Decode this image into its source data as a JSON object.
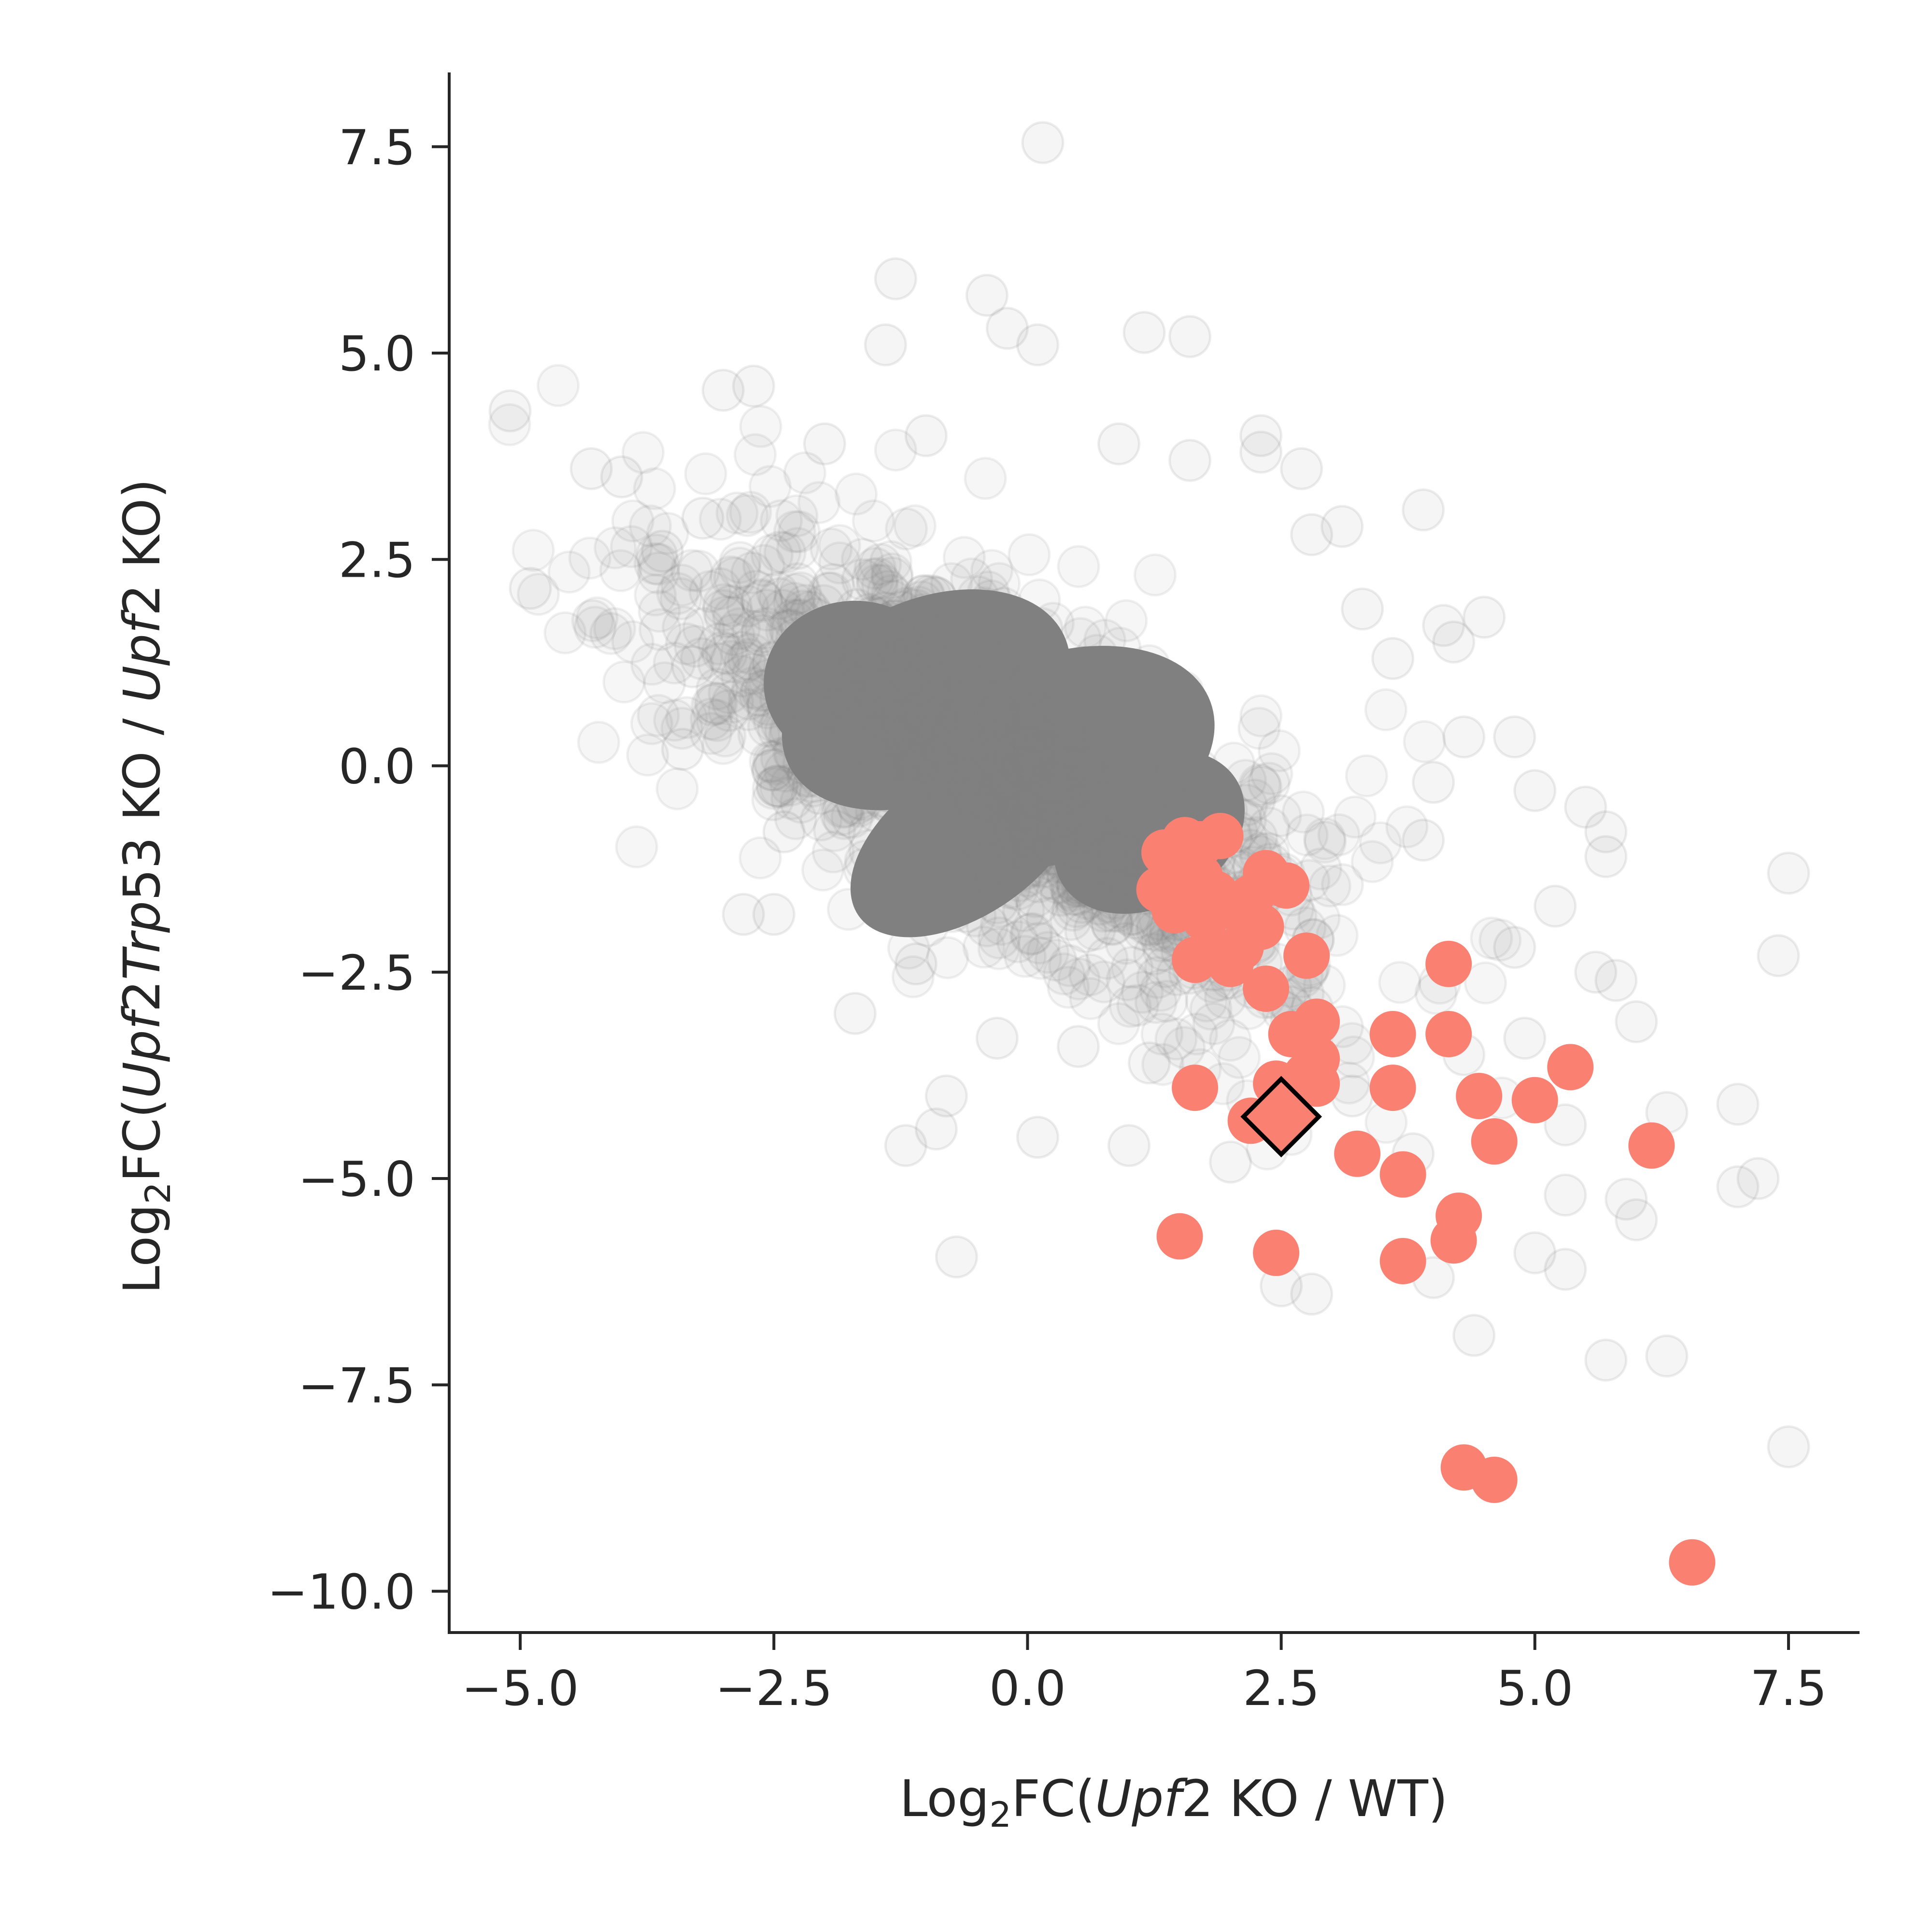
{
  "chart_data": {
    "type": "scatter",
    "xlabel": {
      "parts": [
        {
          "text": "Log",
          "style": "normal"
        },
        {
          "text": "2",
          "style": "sub"
        },
        {
          "text": "FC(",
          "style": "normal"
        },
        {
          "text": "Upf",
          "style": "italic"
        },
        {
          "text": "2 KO / WT)",
          "style": "normal"
        }
      ]
    },
    "ylabel": {
      "parts": [
        {
          "text": "Log",
          "style": "normal"
        },
        {
          "text": "2",
          "style": "sub"
        },
        {
          "text": "FC(",
          "style": "normal"
        },
        {
          "text": "Upf",
          "style": "italic"
        },
        {
          "text": "2",
          "style": "normal"
        },
        {
          "text": "Trp",
          "style": "italic"
        },
        {
          "text": "53 KO / ",
          "style": "normal"
        },
        {
          "text": "Upf",
          "style": "italic"
        },
        {
          "text": "2 KO)",
          "style": "normal"
        }
      ]
    },
    "xlim": [
      -5.7,
      8.2
    ],
    "ylim": [
      -10.5,
      8.4
    ],
    "xticks": [
      -5.0,
      -2.5,
      0.0,
      2.5,
      5.0,
      7.5
    ],
    "xtick_labels": [
      "−5.0",
      "−2.5",
      "0.0",
      "2.5",
      "5.0",
      "7.5"
    ],
    "yticks": [
      -10.0,
      -7.5,
      -5.0,
      -2.5,
      0.0,
      2.5,
      5.0,
      7.5
    ],
    "ytick_labels": [
      "−10.0",
      "−7.5",
      "−5.0",
      "−2.5",
      "0.0",
      "2.5",
      "5.0",
      "7.5"
    ],
    "grid": false,
    "colors": {
      "background_points": "#808080",
      "highlight_points": "#fa8072",
      "marker_edge": "#000000",
      "axis": "#262626"
    },
    "series": [
      {
        "role": "background",
        "color": "#808080",
        "dense_core": [
          {
            "cx": -1.0,
            "cy": 0.8,
            "rx": 1.5,
            "ry": 1.2,
            "angle": -25
          },
          {
            "cx": 0.3,
            "cy": 0.1,
            "rx": 1.6,
            "ry": 1.25,
            "angle": -20
          },
          {
            "cx": -0.6,
            "cy": -0.9,
            "rx": 1.3,
            "ry": 0.9,
            "angle": -35
          },
          {
            "cx": 1.2,
            "cy": -0.8,
            "rx": 1.0,
            "ry": 0.9,
            "angle": -30
          },
          {
            "cx": -1.7,
            "cy": 1.0,
            "rx": 0.9,
            "ry": 1.0,
            "angle": 0
          }
        ],
        "outliers": [
          [
            0.15,
            7.55
          ],
          [
            -5.1,
            4.3
          ],
          [
            -4.3,
            3.6
          ],
          [
            -4.0,
            3.5
          ],
          [
            -4.9,
            2.15
          ],
          [
            -3.0,
            4.55
          ],
          [
            -2.7,
            4.6
          ],
          [
            -1.3,
            5.9
          ],
          [
            -0.4,
            5.7
          ],
          [
            -0.2,
            5.3
          ],
          [
            0.1,
            5.1
          ],
          [
            -1.4,
            5.1
          ],
          [
            1.15,
            5.25
          ],
          [
            1.6,
            5.2
          ],
          [
            2.3,
            3.8
          ],
          [
            2.7,
            3.6
          ],
          [
            2.3,
            4.0
          ],
          [
            3.1,
            2.9
          ],
          [
            3.9,
            3.1
          ],
          [
            4.1,
            1.7
          ],
          [
            4.5,
            1.8
          ],
          [
            4.2,
            1.5
          ],
          [
            4.8,
            0.35
          ],
          [
            5.0,
            -0.3
          ],
          [
            5.5,
            -0.5
          ],
          [
            5.7,
            -0.8
          ],
          [
            7.5,
            -1.3
          ],
          [
            7.4,
            -2.3
          ],
          [
            5.6,
            -2.5
          ],
          [
            5.8,
            -2.6
          ],
          [
            6.0,
            -3.1
          ],
          [
            4.9,
            -3.3
          ],
          [
            7.0,
            -4.1
          ],
          [
            6.3,
            -4.2
          ],
          [
            7.2,
            -5.0
          ],
          [
            7.0,
            -5.1
          ],
          [
            6.0,
            -5.5
          ],
          [
            5.9,
            -5.25
          ],
          [
            5.3,
            -5.2
          ],
          [
            5.0,
            -5.9
          ],
          [
            5.3,
            -6.1
          ],
          [
            4.4,
            -6.9
          ],
          [
            5.7,
            -7.2
          ],
          [
            6.3,
            -7.15
          ],
          [
            7.5,
            -8.25
          ],
          [
            4.0,
            -6.2
          ],
          [
            2.8,
            -6.4
          ],
          [
            2.5,
            -6.3
          ],
          [
            -0.7,
            -5.95
          ],
          [
            -1.2,
            -4.6
          ],
          [
            -0.9,
            -4.4
          ],
          [
            -0.8,
            -4.0
          ],
          [
            0.1,
            -4.5
          ],
          [
            1.0,
            -4.6
          ],
          [
            -1.7,
            -3.0
          ],
          [
            -1.1,
            -2.4
          ],
          [
            -2.8,
            -1.8
          ],
          [
            -2.5,
            -1.8
          ],
          [
            -2.4,
            -0.8
          ],
          [
            -3.4,
            0.2
          ],
          [
            -3.3,
            1.2
          ],
          [
            -3.6,
            2.6
          ],
          [
            -3.2,
            3.0
          ],
          [
            -2.0,
            3.9
          ],
          [
            -1.0,
            4.0
          ],
          [
            0.9,
            3.9
          ],
          [
            1.6,
            3.7
          ],
          [
            2.8,
            2.8
          ],
          [
            3.3,
            1.9
          ],
          [
            3.6,
            1.3
          ],
          [
            4.3,
            0.35
          ],
          [
            4.0,
            -0.2
          ],
          [
            3.9,
            -0.9
          ],
          [
            5.7,
            -1.1
          ],
          [
            5.2,
            -1.7
          ],
          [
            4.8,
            -2.2
          ],
          [
            3.2,
            -4.0
          ],
          [
            3.8,
            -4.7
          ],
          [
            1.2,
            -3.6
          ],
          [
            0.5,
            -3.4
          ],
          [
            -0.3,
            -3.3
          ],
          [
            4.3,
            -3.5
          ],
          [
            5.3,
            -4.35
          ],
          [
            2.0,
            -4.8
          ]
        ]
      },
      {
        "role": "highlight",
        "color": "#fa8072",
        "points": [
          [
            1.35,
            -1.05
          ],
          [
            1.55,
            -0.9
          ],
          [
            1.7,
            -0.95
          ],
          [
            1.45,
            -1.15
          ],
          [
            1.9,
            -0.85
          ],
          [
            1.3,
            -1.5
          ],
          [
            1.5,
            -1.4
          ],
          [
            1.7,
            -1.35
          ],
          [
            1.6,
            -1.6
          ],
          [
            1.85,
            -1.55
          ],
          [
            1.45,
            -1.75
          ],
          [
            1.75,
            -1.85
          ],
          [
            2.0,
            -1.7
          ],
          [
            2.2,
            -1.6
          ],
          [
            2.35,
            -1.3
          ],
          [
            2.55,
            -1.45
          ],
          [
            2.3,
            -1.95
          ],
          [
            2.1,
            -2.2
          ],
          [
            1.95,
            -2.3
          ],
          [
            1.65,
            -2.35
          ],
          [
            2.0,
            -2.4
          ],
          [
            2.75,
            -2.3
          ],
          [
            2.35,
            -2.7
          ],
          [
            4.15,
            -2.4
          ],
          [
            2.6,
            -3.25
          ],
          [
            2.85,
            -3.1
          ],
          [
            3.6,
            -3.25
          ],
          [
            4.15,
            -3.25
          ],
          [
            2.85,
            -3.55
          ],
          [
            2.75,
            -3.75
          ],
          [
            2.85,
            -3.85
          ],
          [
            2.45,
            -3.85
          ],
          [
            1.65,
            -3.9
          ],
          [
            3.6,
            -3.9
          ],
          [
            4.45,
            -4.0
          ],
          [
            5.0,
            -4.05
          ],
          [
            5.35,
            -3.65
          ],
          [
            2.2,
            -4.3
          ],
          [
            3.25,
            -4.7
          ],
          [
            4.6,
            -4.55
          ],
          [
            3.7,
            -4.95
          ],
          [
            6.15,
            -4.6
          ],
          [
            4.25,
            -5.45
          ],
          [
            4.2,
            -5.75
          ],
          [
            1.5,
            -5.7
          ],
          [
            2.45,
            -5.9
          ],
          [
            3.7,
            -6.0
          ],
          [
            4.3,
            -8.5
          ],
          [
            4.6,
            -8.65
          ],
          [
            6.55,
            -9.65
          ]
        ]
      },
      {
        "role": "highlight-diamond",
        "color": "#fa8072",
        "points": [
          [
            2.5,
            -4.25
          ]
        ]
      }
    ]
  }
}
